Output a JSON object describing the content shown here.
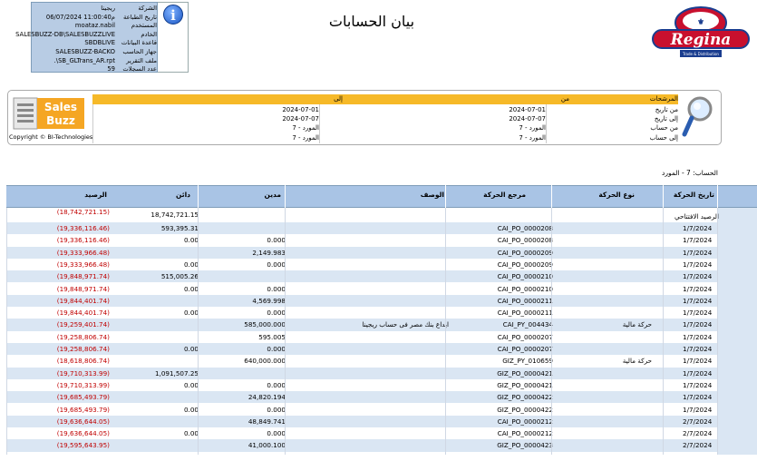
{
  "info": {
    "rows": [
      {
        "label": "الشركة",
        "value": "ريجينا"
      },
      {
        "label": "تاريخ الطباعة",
        "value": "06/07/2024 11:00:40م"
      },
      {
        "label": "المستخدم",
        "value": "moataz.nabil"
      },
      {
        "label": "الخادم",
        "value": "SALESBUZZ-DB\\SALESBUZZLIVE"
      },
      {
        "label": "قاعدة البيانات",
        "value": "SBDBLIVE"
      },
      {
        "label": "جهاز الحاسب",
        "value": "SALESBUZZ-BACKO"
      },
      {
        "label": "ملف التقرير",
        "value": ".\\SB_GLTrans_AR.rpt"
      },
      {
        "label": "عدد السجلات",
        "value": "59"
      }
    ],
    "icon": "info-icon"
  },
  "title": "بيان الحسابات",
  "logo": {
    "brand": "Regina",
    "tagline": "Trade & Distribution"
  },
  "salesbuzz": {
    "line1": "Sales",
    "line2": "Buzz",
    "copyright": "Copyright © BI-Technologies"
  },
  "filters": {
    "header_filters": "المرشحات",
    "header_from": "من",
    "header_to": "إلى",
    "rows": [
      {
        "label": "من تاريخ",
        "from": "2024-07-01",
        "to": "2024-07-01"
      },
      {
        "label": "إلى تاريخ",
        "from": "2024-07-07",
        "to": "2024-07-07"
      },
      {
        "label": "من حساب",
        "from": "المورد - 7",
        "to": "المورد - 7"
      },
      {
        "label": "إلى حساب",
        "from": "المورد - 7",
        "to": "المورد - 7"
      }
    ]
  },
  "account_line": "الحساب:  7 - المورد",
  "table": {
    "headers": {
      "date": "تاريخ الحركة",
      "type": "نوع الحركة",
      "ref": "مرجع الحركة",
      "desc": "الوصف",
      "debit": "مدين",
      "credit": "دائن",
      "balance": "الرصيد"
    },
    "opening": {
      "label": "الرصيد الافتتاحي",
      "credit": "18,742,721.15",
      "balance": "(18,742,721.15)"
    },
    "rows": [
      {
        "date": "1/7/2024",
        "type": "",
        "ref": "CAI_PO_0000208",
        "desc": "",
        "debit": "",
        "credit": "593,395.31",
        "balance": "(19,336,116.46)"
      },
      {
        "date": "1/7/2024",
        "type": "",
        "ref": "CAI_PO_0000208",
        "desc": "",
        "debit": "0.000",
        "credit": "0.00",
        "balance": "(19,336,116.46)"
      },
      {
        "date": "1/7/2024",
        "type": "",
        "ref": "CAI_PO_0000209",
        "desc": "",
        "debit": "2,149.983",
        "credit": "",
        "balance": "(19,333,966.48)"
      },
      {
        "date": "1/7/2024",
        "type": "",
        "ref": "CAI_PO_0000209",
        "desc": "",
        "debit": "0.000",
        "credit": "0.00",
        "balance": "(19,333,966.48)"
      },
      {
        "date": "1/7/2024",
        "type": "",
        "ref": "CAI_PO_0000210",
        "desc": "",
        "debit": "",
        "credit": "515,005.26",
        "balance": "(19,848,971.74)"
      },
      {
        "date": "1/7/2024",
        "type": "",
        "ref": "CAI_PO_0000210",
        "desc": "",
        "debit": "0.000",
        "credit": "0.00",
        "balance": "(19,848,971.74)"
      },
      {
        "date": "1/7/2024",
        "type": "",
        "ref": "CAI_PO_0000211",
        "desc": "",
        "debit": "4,569.998",
        "credit": "",
        "balance": "(19,844,401.74)"
      },
      {
        "date": "1/7/2024",
        "type": "",
        "ref": "CAI_PO_0000211",
        "desc": "",
        "debit": "0.000",
        "credit": "0.00",
        "balance": "(19,844,401.74)"
      },
      {
        "date": "1/7/2024",
        "type": "حركة مالية",
        "ref": "CAI_PY_004434",
        "desc": "ايداع بنك مصر فى حساب ريجينا",
        "debit": "585,000.000",
        "credit": "",
        "balance": "(19,259,401.74)"
      },
      {
        "date": "1/7/2024",
        "type": "",
        "ref": "CAI_PO_0000207",
        "desc": "",
        "debit": "595.005",
        "credit": "",
        "balance": "(19,258,806.74)"
      },
      {
        "date": "1/7/2024",
        "type": "",
        "ref": "CAI_PO_0000207",
        "desc": "",
        "debit": "0.000",
        "credit": "0.00",
        "balance": "(19,258,806.74)"
      },
      {
        "date": "1/7/2024",
        "type": "حركة مالية",
        "ref": "GIZ_PY_010659",
        "desc": "",
        "debit": "640,000.000",
        "credit": "",
        "balance": "(18,618,806.74)"
      },
      {
        "date": "1/7/2024",
        "type": "",
        "ref": "GIZ_PO_0000421",
        "desc": "",
        "debit": "",
        "credit": "1,091,507.25",
        "balance": "(19,710,313.99)"
      },
      {
        "date": "1/7/2024",
        "type": "",
        "ref": "GIZ_PO_0000421",
        "desc": "",
        "debit": "0.000",
        "credit": "0.00",
        "balance": "(19,710,313.99)"
      },
      {
        "date": "1/7/2024",
        "type": "",
        "ref": "GIZ_PO_0000422",
        "desc": "",
        "debit": "24,820.194",
        "credit": "",
        "balance": "(19,685,493.79)"
      },
      {
        "date": "1/7/2024",
        "type": "",
        "ref": "GIZ_PO_0000422",
        "desc": "",
        "debit": "0.000",
        "credit": "0.00",
        "balance": "(19,685,493.79)"
      },
      {
        "date": "2/7/2024",
        "type": "",
        "ref": "CAI_PO_0000212",
        "desc": "",
        "debit": "48,849.741",
        "credit": "",
        "balance": "(19,636,644.05)"
      },
      {
        "date": "2/7/2024",
        "type": "",
        "ref": "CAI_PO_0000212",
        "desc": "",
        "debit": "0.000",
        "credit": "0.00",
        "balance": "(19,636,644.05)"
      },
      {
        "date": "2/7/2024",
        "type": "",
        "ref": "GIZ_PO_0000423",
        "desc": "",
        "debit": "41,000.100",
        "credit": "",
        "balance": "(19,595,643.95)"
      }
    ]
  }
}
